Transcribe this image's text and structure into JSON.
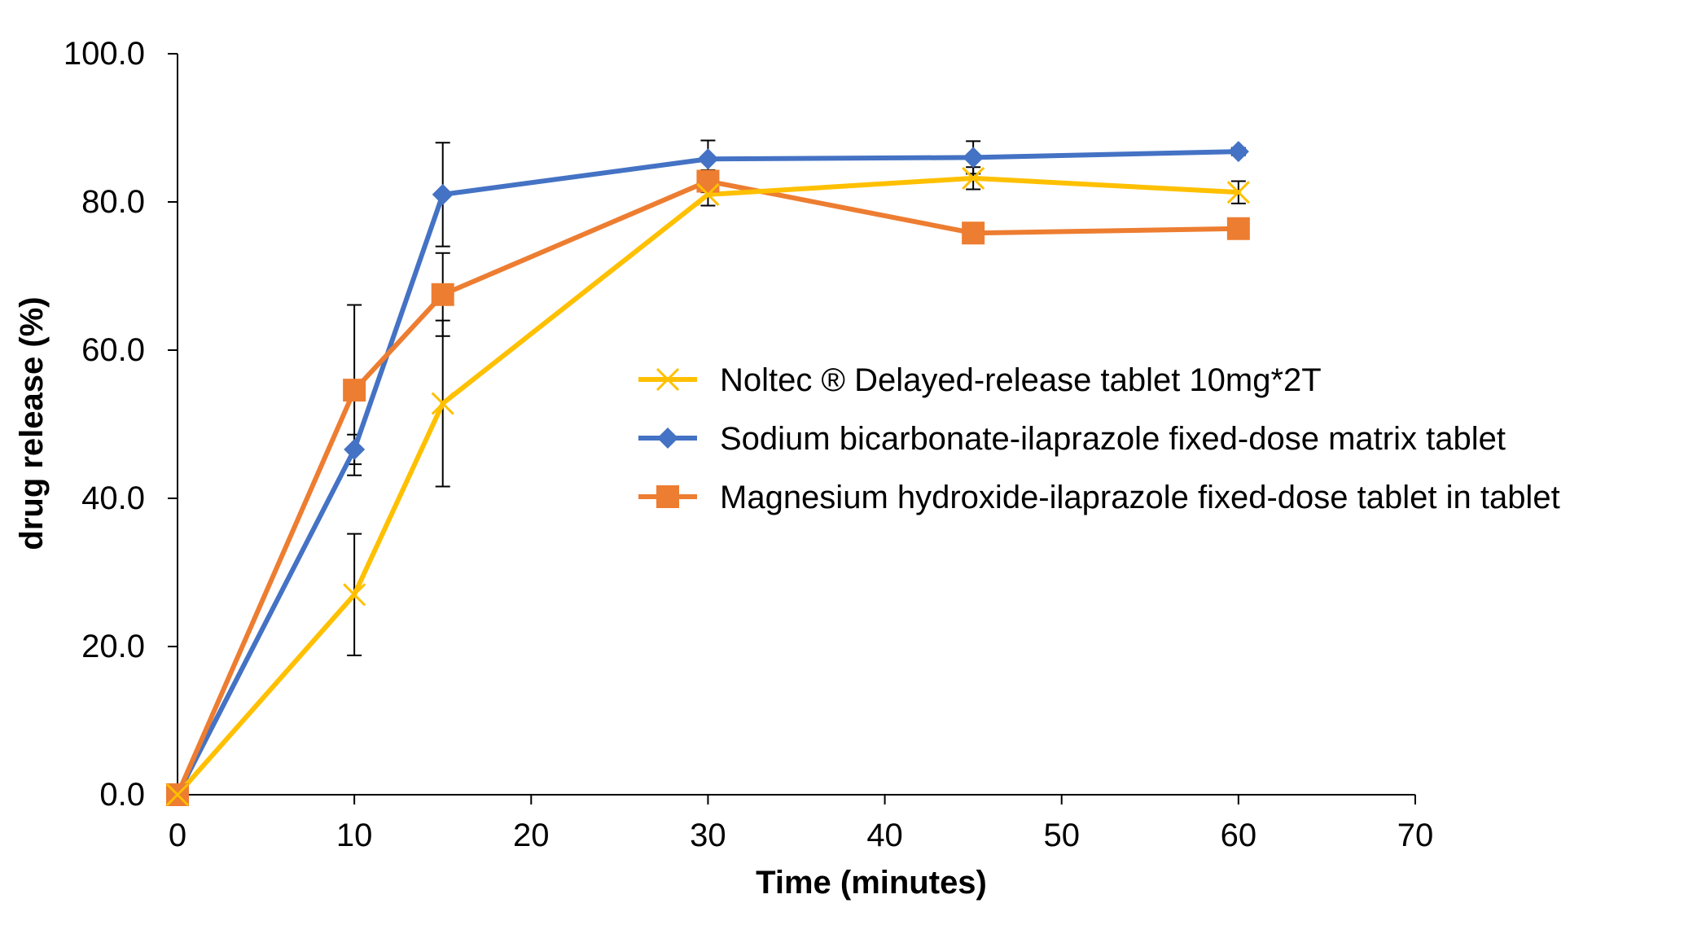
{
  "chart_data": {
    "type": "line",
    "title": "",
    "xlabel": "Time (minutes)",
    "ylabel": "drug release (%)",
    "xlim": [
      0,
      70
    ],
    "ylim": [
      0,
      100
    ],
    "x_ticks": [
      0,
      10,
      20,
      30,
      40,
      50,
      60,
      70
    ],
    "y_ticks": [
      "0.0",
      "20.0",
      "40.0",
      "60.0",
      "80.0",
      "100.0"
    ],
    "y_tick_values": [
      0,
      20,
      40,
      60,
      80,
      100
    ],
    "grid": false,
    "legend_position": "center-right",
    "series": [
      {
        "name": "Noltec ® Delayed-release tablet 10mg*2T",
        "color": "#FFC000",
        "marker": "x",
        "x": [
          0,
          10,
          15,
          30,
          45,
          60
        ],
        "values": [
          0,
          27.0,
          52.8,
          81.0,
          83.2,
          81.3
        ],
        "error": [
          0,
          8.2,
          11.2,
          1.5,
          1.5,
          1.5
        ]
      },
      {
        "name": "Sodium bicarbonate-ilaprazole fixed-dose matrix tablet",
        "color": "#4472C4",
        "marker": "diamond",
        "x": [
          0,
          10,
          15,
          30,
          45,
          60
        ],
        "values": [
          0,
          46.6,
          81.0,
          85.8,
          86.0,
          86.8
        ],
        "error": [
          0,
          2.0,
          7.0,
          2.5,
          2.2,
          0.5
        ]
      },
      {
        "name": "Magnesium hydroxide-ilaprazole fixed-dose tablet in tablet",
        "color": "#ED7D31",
        "marker": "square",
        "x": [
          0,
          10,
          15,
          30,
          45,
          60
        ],
        "values": [
          0,
          54.6,
          67.5,
          82.8,
          75.8,
          76.4
        ],
        "error": [
          0,
          11.5,
          5.6,
          1.5,
          0.5,
          0.5
        ]
      }
    ]
  }
}
